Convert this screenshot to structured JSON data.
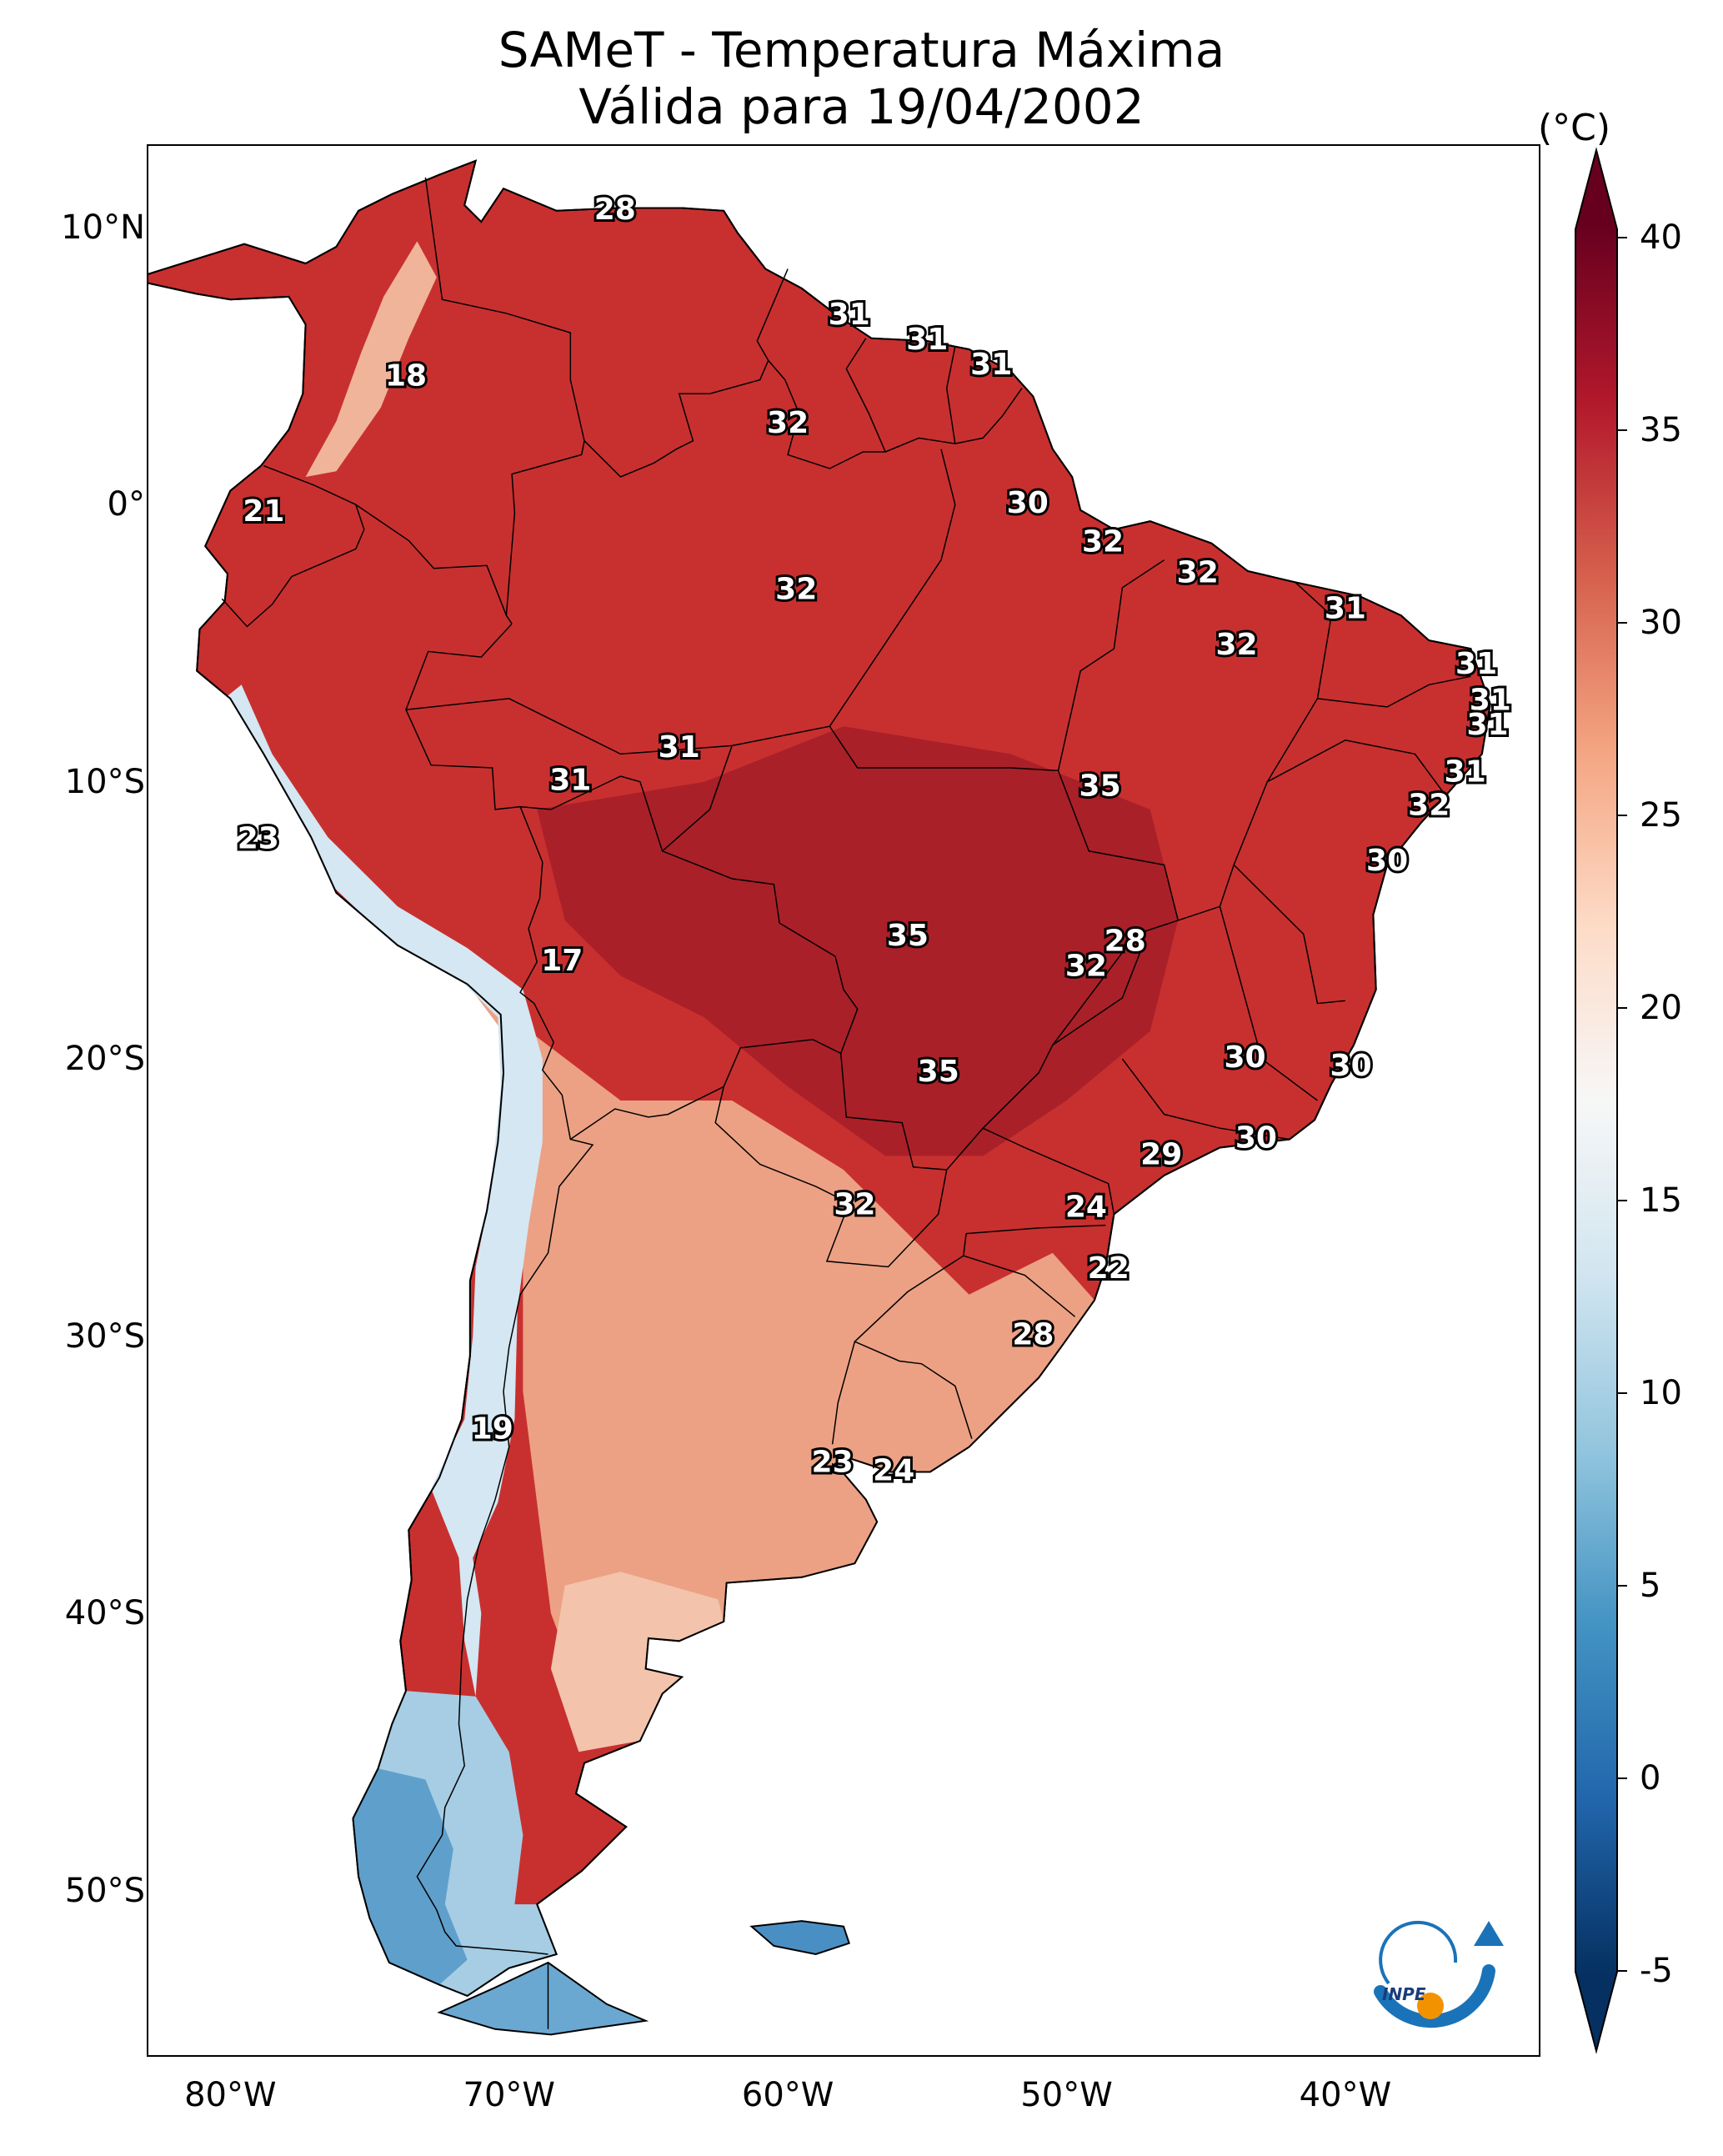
{
  "title_line1": "SAMeT - Temperatura Máxima",
  "title_line2": "Válida para 19/04/2002",
  "map_extent": {
    "lon_min": -83,
    "lon_max": -33,
    "lat_min": -56,
    "lat_max": 13
  },
  "lat_ticks": [
    {
      "lat": 10,
      "label": "10°N"
    },
    {
      "lat": 0,
      "label": "0°"
    },
    {
      "lat": -10,
      "label": "10°S"
    },
    {
      "lat": -20,
      "label": "20°S"
    },
    {
      "lat": -30,
      "label": "30°S"
    },
    {
      "lat": -40,
      "label": "40°S"
    },
    {
      "lat": -50,
      "label": "50°S"
    }
  ],
  "lon_ticks": [
    {
      "lon": -80,
      "label": "80°W"
    },
    {
      "lon": -70,
      "label": "70°W"
    },
    {
      "lon": -60,
      "label": "60°W"
    },
    {
      "lon": -50,
      "label": "50°W"
    },
    {
      "lon": -40,
      "label": "40°W"
    }
  ],
  "colorbar": {
    "unit": "(°C)",
    "min": -5,
    "max": 40,
    "ticks": [
      "40",
      "35",
      "30",
      "25",
      "20",
      "15",
      "10",
      "5",
      "0",
      "-5"
    ],
    "colors": [
      "#053061",
      "#2166ac",
      "#4393c3",
      "#92c5de",
      "#d1e5f0",
      "#f7f7f7",
      "#fddbc7",
      "#f4a582",
      "#d6604d",
      "#b2182b",
      "#67001f"
    ]
  },
  "region_colors": {
    "north_hot": "#b5232d",
    "center_very_hot": "#a51d28",
    "south_warm": "#eca184",
    "andes_cool": "#cfe3ef",
    "patagonia_cold": "#8dbcdb",
    "far_south_colder": "#5a9bc8"
  },
  "station_labels": [
    {
      "lon": -66.2,
      "lat": 10.6,
      "value": "28"
    },
    {
      "lon": -57.8,
      "lat": 6.8,
      "value": "31"
    },
    {
      "lon": -55.0,
      "lat": 5.9,
      "value": "31"
    },
    {
      "lon": -52.7,
      "lat": 5.0,
      "value": "31"
    },
    {
      "lon": -73.7,
      "lat": 4.6,
      "value": "18"
    },
    {
      "lon": -60.0,
      "lat": 2.9,
      "value": "32"
    },
    {
      "lon": -51.4,
      "lat": 0.0,
      "value": "30"
    },
    {
      "lon": -78.8,
      "lat": -0.3,
      "value": "21"
    },
    {
      "lon": -48.7,
      "lat": -1.4,
      "value": "32"
    },
    {
      "lon": -59.7,
      "lat": -3.1,
      "value": "32"
    },
    {
      "lon": -45.3,
      "lat": -2.5,
      "value": "32"
    },
    {
      "lon": -40.0,
      "lat": -3.8,
      "value": "31"
    },
    {
      "lon": -43.9,
      "lat": -5.1,
      "value": "32"
    },
    {
      "lon": -35.3,
      "lat": -5.8,
      "value": "31"
    },
    {
      "lon": -34.8,
      "lat": -7.1,
      "value": "31"
    },
    {
      "lon": -34.9,
      "lat": -8.0,
      "value": "31"
    },
    {
      "lon": -63.9,
      "lat": -8.8,
      "value": "31"
    },
    {
      "lon": -67.8,
      "lat": -10.0,
      "value": "31"
    },
    {
      "lon": -48.8,
      "lat": -10.2,
      "value": "35"
    },
    {
      "lon": -35.7,
      "lat": -9.7,
      "value": "31"
    },
    {
      "lon": -37.0,
      "lat": -10.9,
      "value": "32"
    },
    {
      "lon": -79.0,
      "lat": -12.1,
      "value": "23"
    },
    {
      "lon": -38.5,
      "lat": -12.9,
      "value": "30"
    },
    {
      "lon": -55.7,
      "lat": -15.6,
      "value": "35"
    },
    {
      "lon": -47.9,
      "lat": -15.8,
      "value": "28"
    },
    {
      "lon": -49.3,
      "lat": -16.7,
      "value": "32"
    },
    {
      "lon": -68.1,
      "lat": -16.5,
      "value": "17"
    },
    {
      "lon": -43.6,
      "lat": -20.0,
      "value": "30"
    },
    {
      "lon": -54.6,
      "lat": -20.5,
      "value": "35"
    },
    {
      "lon": -39.8,
      "lat": -20.3,
      "value": "30"
    },
    {
      "lon": -43.2,
      "lat": -22.9,
      "value": "30"
    },
    {
      "lon": -46.6,
      "lat": -23.5,
      "value": "29"
    },
    {
      "lon": -57.6,
      "lat": -25.3,
      "value": "32"
    },
    {
      "lon": -49.3,
      "lat": -25.4,
      "value": "24"
    },
    {
      "lon": -48.5,
      "lat": -27.6,
      "value": "22"
    },
    {
      "lon": -51.2,
      "lat": -30.0,
      "value": "28"
    },
    {
      "lon": -70.6,
      "lat": -33.4,
      "value": "19"
    },
    {
      "lon": -58.4,
      "lat": -34.6,
      "value": "23"
    },
    {
      "lon": -56.2,
      "lat": -34.9,
      "value": "24"
    }
  ],
  "logo": {
    "text": "INPE",
    "blue": "#1a73b8",
    "orange": "#f39200"
  }
}
